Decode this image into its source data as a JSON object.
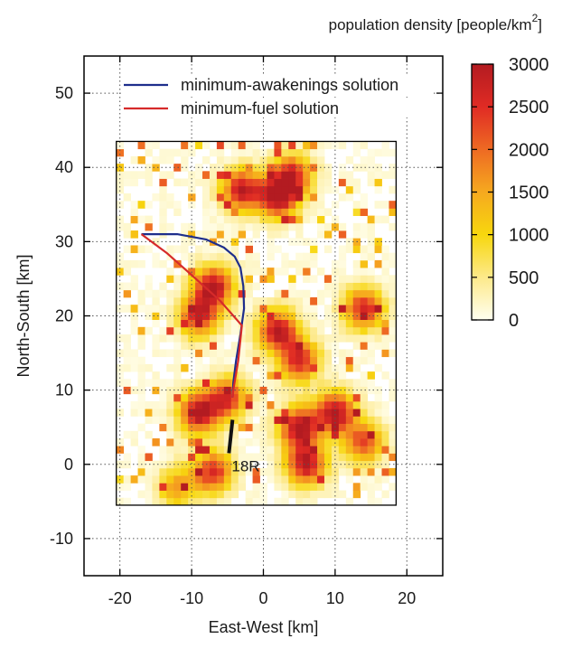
{
  "chart_data": {
    "type": "heatmap",
    "xlabel": "East-West [km]",
    "ylabel": "North-South [km]",
    "xlim": [
      -25,
      25
    ],
    "ylim": [
      -15,
      55
    ],
    "x_ticks": [
      -20,
      -10,
      0,
      10,
      20
    ],
    "y_ticks": [
      -10,
      0,
      10,
      20,
      30,
      40,
      50
    ],
    "grid": true,
    "colorbar": {
      "title": "population density [people/km",
      "title_superscript": "2",
      "title_end": "]",
      "min": 0,
      "max": 3000,
      "ticks": [
        0,
        500,
        1000,
        1500,
        2000,
        2500,
        3000
      ],
      "colors": [
        "#fffff0",
        "#fde98a",
        "#f7d70e",
        "#f6a91f",
        "#ee6a23",
        "#e02b24",
        "#b31b21"
      ]
    },
    "heatmap_extent": {
      "x": [
        -20.5,
        18.5
      ],
      "y": [
        -5.5,
        43.5
      ]
    },
    "heatmap_cell_km": 1.0,
    "density_hotspots": [
      {
        "x": 2,
        "y": 36,
        "value": 3000
      },
      {
        "x": -3,
        "y": 37,
        "value": 2800
      },
      {
        "x": -7,
        "y": 24,
        "value": 2900
      },
      {
        "x": -9,
        "y": 20,
        "value": 2600
      },
      {
        "x": 2,
        "y": 18,
        "value": 2900
      },
      {
        "x": 5,
        "y": 14,
        "value": 2600
      },
      {
        "x": -9,
        "y": 7,
        "value": 3000
      },
      {
        "x": -5,
        "y": 9,
        "value": 2400
      },
      {
        "x": 5,
        "y": 5,
        "value": 3000
      },
      {
        "x": 10,
        "y": 7,
        "value": 3000
      },
      {
        "x": 6,
        "y": 0,
        "value": 2900
      },
      {
        "x": -7,
        "y": -1,
        "value": 2500
      },
      {
        "x": 14,
        "y": 21,
        "value": 2600
      },
      {
        "x": 14,
        "y": 3,
        "value": 2200
      },
      {
        "x": -12,
        "y": -3,
        "value": 1500
      },
      {
        "x": 4,
        "y": 39,
        "value": 2500
      }
    ],
    "series": [
      {
        "name": "minimum-awakenings solution",
        "color": "#1e2e8c",
        "x": [
          -17,
          -12,
          -8,
          -5.5,
          -4,
          -3.2,
          -2.8,
          -2.7,
          -3.2,
          -3.8,
          -4.2,
          -4.3
        ],
        "y": [
          31,
          31,
          30.3,
          29.2,
          28,
          26.5,
          24,
          21,
          17.5,
          14,
          11,
          9
        ]
      },
      {
        "name": "minimum-fuel solution",
        "color": "#d62a2a",
        "x": [
          -17,
          -13.5,
          -10,
          -6,
          -3,
          -3.5,
          -4.2,
          -4.3
        ],
        "y": [
          31,
          28.5,
          25.5,
          22,
          18.7,
          14,
          10,
          9
        ]
      }
    ],
    "runway": {
      "label": "18R",
      "x": [
        -4.3,
        -4.8
      ],
      "y": [
        6,
        1.5
      ]
    }
  }
}
